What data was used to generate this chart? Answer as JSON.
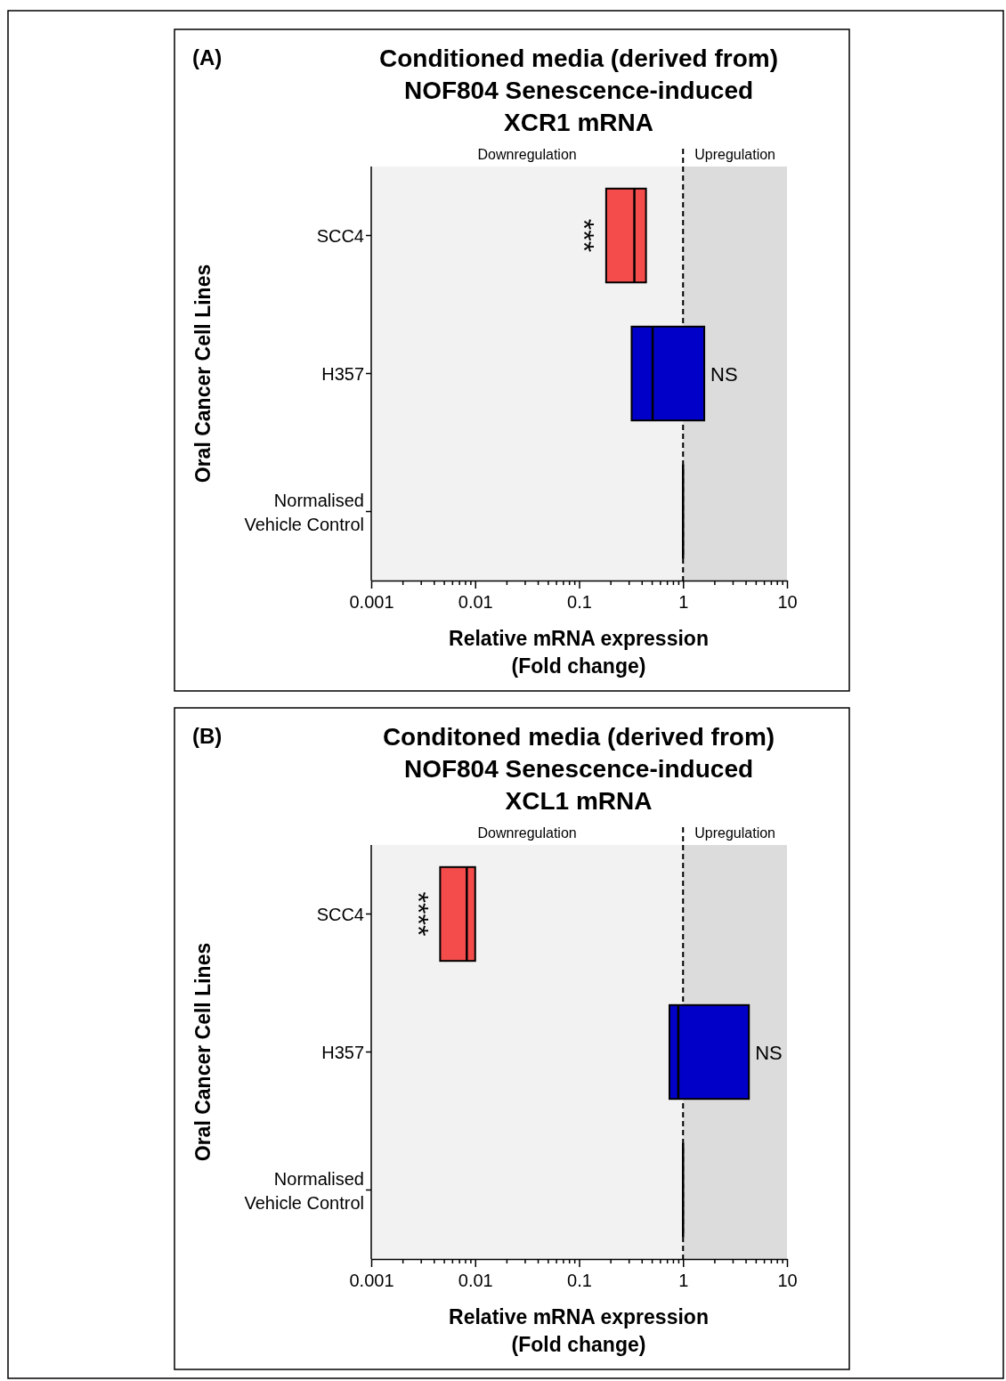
{
  "chart_data": [
    {
      "type": "box",
      "orientation": "horizontal",
      "title": "Conditioned media (derived from)\nNOF804 Senescence-induced\nXCR1 mRNA",
      "xlabel": "Relative mRNA expression\n(Fold change)",
      "ylabel": "Oral Cancer Cell Lines",
      "log": "x",
      "categories": [
        "SCC4",
        "H357",
        "Normalised\nVehicle Control"
      ],
      "boxes": [
        {
          "low": 0.182,
          "q1": 0.182,
          "median": 0.34,
          "q3": 0.44,
          "high": 0.44
        },
        {
          "low": 0.32,
          "q1": 0.32,
          "median": 0.51,
          "q3": 1.6,
          "high": 1.6
        },
        {
          "low": 1,
          "q1": 1,
          "median": 1,
          "q3": 1,
          "high": 1
        }
      ],
      "colors": [
        "#f44b4b",
        "#0000c8",
        "#000000"
      ],
      "xlim": [
        0.001,
        10
      ],
      "xticks": [
        0.001,
        {
          "value": 0.002,
          "label": null
        },
        {
          "value": 0.003,
          "label": null
        },
        {
          "value": 0.004,
          "label": null
        },
        {
          "value": 0.005,
          "label": null
        },
        {
          "value": 0.006,
          "label": null
        },
        {
          "value": 0.007,
          "label": null
        },
        {
          "value": 0.008,
          "label": null
        },
        {
          "value": 0.009,
          "label": null
        },
        0.01,
        {
          "value": 0.02,
          "label": null
        },
        {
          "value": 0.03,
          "label": null
        },
        {
          "value": 0.04,
          "label": null
        },
        {
          "value": 0.05,
          "label": null
        },
        {
          "value": 0.06,
          "label": null
        },
        {
          "value": 0.07,
          "label": null
        },
        {
          "value": 0.08,
          "label": null
        },
        {
          "value": 0.09,
          "label": null
        },
        0.1,
        {
          "value": 0.2,
          "label": null
        },
        {
          "value": 0.3,
          "label": null
        },
        {
          "value": 0.4,
          "label": null
        },
        {
          "value": 0.5,
          "label": null
        },
        {
          "value": 0.6,
          "label": null
        },
        {
          "value": 0.7,
          "label": null
        },
        {
          "value": 0.8,
          "label": null
        },
        {
          "value": 0.9,
          "label": null
        },
        1,
        {
          "value": 2,
          "label": null
        },
        {
          "value": 3,
          "label": null
        },
        {
          "value": 4,
          "label": null
        },
        {
          "value": 5,
          "label": null
        },
        {
          "value": 6,
          "label": null
        },
        {
          "value": 7,
          "label": null
        },
        {
          "value": 8,
          "label": null
        },
        {
          "value": 9,
          "label": null
        },
        10
      ],
      "bands": [
        {
          "axis": "x",
          "from": 0.001,
          "to": 1,
          "label": "Downregulation",
          "color": "#f2f2f2"
        },
        {
          "axis": "x",
          "from": 1,
          "to": 10,
          "label": "Upregulation",
          "color": "#dcdcdc"
        }
      ],
      "ref_lines": [
        {
          "axis": "x",
          "value": 1,
          "line_style": "dashed",
          "color": "#000000"
        }
      ],
      "annotations": [
        "(A)",
        "***",
        "NS"
      ]
    },
    {
      "type": "box",
      "orientation": "horizontal",
      "title": "Conditoned media (derived from)\nNOF804 Senescence-induced\nXCL1 mRNA",
      "xlabel": "Relative mRNA expression\n(Fold change)",
      "ylabel": "Oral Cancer Cell Lines",
      "log": "x",
      "categories": [
        "SCC4",
        "H357",
        "Normalised\nVehicle Control"
      ],
      "boxes": [
        {
          "low": 0.0046,
          "q1": 0.0046,
          "median": 0.0083,
          "q3": 0.01,
          "high": 0.01
        },
        {
          "low": 0.74,
          "q1": 0.74,
          "median": 0.9,
          "q3": 4.3,
          "high": 4.3
        },
        {
          "low": 1,
          "q1": 1,
          "median": 1,
          "q3": 1,
          "high": 1
        }
      ],
      "colors": [
        "#f44b4b",
        "#0000c8",
        "#000000"
      ],
      "xlim": [
        0.001,
        10
      ],
      "xticks": [
        0.001,
        {
          "value": 0.002,
          "label": null
        },
        {
          "value": 0.003,
          "label": null
        },
        {
          "value": 0.004,
          "label": null
        },
        {
          "value": 0.005,
          "label": null
        },
        {
          "value": 0.006,
          "label": null
        },
        {
          "value": 0.007,
          "label": null
        },
        {
          "value": 0.008,
          "label": null
        },
        {
          "value": 0.009,
          "label": null
        },
        0.01,
        {
          "value": 0.02,
          "label": null
        },
        {
          "value": 0.03,
          "label": null
        },
        {
          "value": 0.04,
          "label": null
        },
        {
          "value": 0.05,
          "label": null
        },
        {
          "value": 0.06,
          "label": null
        },
        {
          "value": 0.07,
          "label": null
        },
        {
          "value": 0.08,
          "label": null
        },
        {
          "value": 0.09,
          "label": null
        },
        0.1,
        {
          "value": 0.2,
          "label": null
        },
        {
          "value": 0.3,
          "label": null
        },
        {
          "value": 0.4,
          "label": null
        },
        {
          "value": 0.5,
          "label": null
        },
        {
          "value": 0.6,
          "label": null
        },
        {
          "value": 0.7,
          "label": null
        },
        {
          "value": 0.8,
          "label": null
        },
        {
          "value": 0.9,
          "label": null
        },
        1,
        {
          "value": 2,
          "label": null
        },
        {
          "value": 3,
          "label": null
        },
        {
          "value": 4,
          "label": null
        },
        {
          "value": 5,
          "label": null
        },
        {
          "value": 6,
          "label": null
        },
        {
          "value": 7,
          "label": null
        },
        {
          "value": 8,
          "label": null
        },
        {
          "value": 9,
          "label": null
        },
        10
      ],
      "bands": [
        {
          "axis": "x",
          "from": 0.001,
          "to": 1,
          "label": "Downregulation",
          "color": "#f2f2f2"
        },
        {
          "axis": "x",
          "from": 1,
          "to": 10,
          "label": "Upregulation",
          "color": "#dcdcdc"
        }
      ],
      "ref_lines": [
        {
          "axis": "x",
          "value": 1,
          "line_style": "dashed",
          "color": "#000000"
        }
      ],
      "annotations": [
        "(B)",
        "****",
        "NS"
      ]
    }
  ]
}
